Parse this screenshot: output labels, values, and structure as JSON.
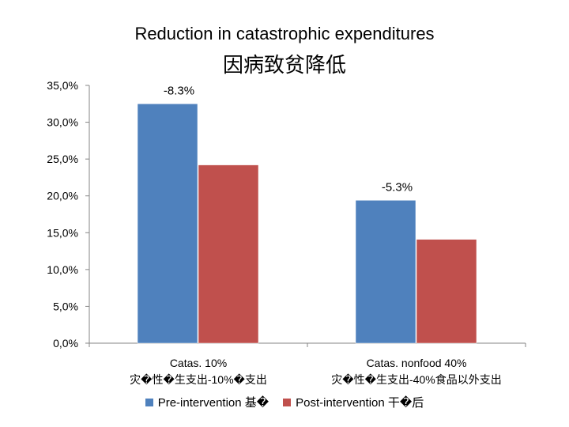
{
  "chart_data": {
    "type": "bar",
    "title": "Reduction in catastrophic expenditures",
    "subtitle": "因病致贫降低",
    "categories": [
      {
        "line1": "Catas. 10%",
        "line2": "灾�性�生支出-10%�支出"
      },
      {
        "line1": "Catas. nonfood 40%",
        "line2": "灾�性�生支出-40%食品以外支出"
      }
    ],
    "series": [
      {
        "name": "Pre-intervention 基�",
        "color": "#4F81BD",
        "values": [
          32.5,
          19.4
        ]
      },
      {
        "name": "Post-intervention 干�后",
        "color": "#C0504D",
        "values": [
          24.2,
          14.1
        ]
      }
    ],
    "annotations": [
      "-8.3%",
      "-5.3%"
    ],
    "yticks": [
      "0,0%",
      "5,0%",
      "10,0%",
      "15,0%",
      "20,0%",
      "25,0%",
      "30,0%",
      "35,0%"
    ],
    "ylim": [
      0,
      35
    ],
    "ystep": 5,
    "grid": false,
    "legend_position": "bottom"
  }
}
